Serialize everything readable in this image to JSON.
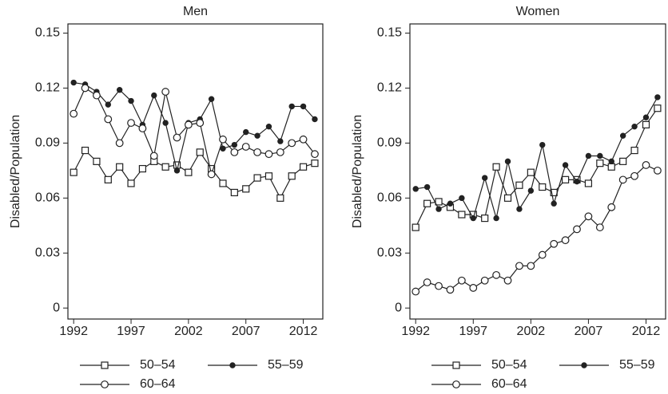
{
  "chart_data": [
    {
      "type": "line",
      "title": "Men",
      "y_label": "Disabled/Population",
      "x": [
        1992,
        1993,
        1994,
        1995,
        1996,
        1997,
        1998,
        1999,
        2000,
        2001,
        2002,
        2003,
        2004,
        2005,
        2006,
        2007,
        2008,
        2009,
        2010,
        2011,
        2012,
        2013
      ],
      "series": [
        {
          "name": "50–54",
          "color": "#222222",
          "marker": "open-square",
          "values": [
            0.074,
            0.086,
            0.08,
            0.07,
            0.077,
            0.068,
            0.076,
            0.08,
            0.077,
            0.078,
            0.074,
            0.085,
            0.076,
            0.068,
            0.063,
            0.065,
            0.071,
            0.072,
            0.06,
            0.072,
            0.077,
            0.079
          ]
        },
        {
          "name": "55–59",
          "color": "#222222",
          "marker": "filled-circle",
          "values": [
            0.123,
            0.122,
            0.118,
            0.111,
            0.119,
            0.113,
            0.1,
            0.116,
            0.101,
            0.075,
            0.101,
            0.103,
            0.114,
            0.087,
            0.089,
            0.096,
            0.094,
            0.099,
            0.091,
            0.11,
            0.11,
            0.103
          ]
        },
        {
          "name": "60–64",
          "color": "#222222",
          "marker": "open-circle",
          "values": [
            0.106,
            0.12,
            0.116,
            0.103,
            0.09,
            0.101,
            0.098,
            0.083,
            0.118,
            0.093,
            0.1,
            0.101,
            0.073,
            0.092,
            0.085,
            0.088,
            0.085,
            0.084,
            0.085,
            0.09,
            0.092,
            0.084
          ]
        }
      ],
      "xlim": [
        1991.5,
        2013.7
      ],
      "ylim": [
        -0.006,
        0.155
      ],
      "xticks": [
        1992,
        1997,
        2002,
        2007,
        2012
      ],
      "yticks": [
        0,
        0.03,
        0.06,
        0.09,
        0.12,
        0.15
      ]
    },
    {
      "type": "line",
      "title": "Women",
      "y_label": "Disabled/Population",
      "x": [
        1992,
        1993,
        1994,
        1995,
        1996,
        1997,
        1998,
        1999,
        2000,
        2001,
        2002,
        2003,
        2004,
        2005,
        2006,
        2007,
        2008,
        2009,
        2010,
        2011,
        2012,
        2013
      ],
      "series": [
        {
          "name": "50–54",
          "color": "#222222",
          "marker": "open-square",
          "values": [
            0.044,
            0.057,
            0.058,
            0.055,
            0.051,
            0.051,
            0.049,
            0.077,
            0.06,
            0.067,
            0.074,
            0.066,
            0.063,
            0.07,
            0.07,
            0.068,
            0.079,
            0.077,
            0.08,
            0.086,
            0.1,
            0.109
          ]
        },
        {
          "name": "55–59",
          "color": "#222222",
          "marker": "filled-circle",
          "values": [
            0.065,
            0.066,
            0.054,
            0.057,
            0.06,
            0.049,
            0.071,
            0.049,
            0.08,
            0.054,
            0.064,
            0.089,
            0.057,
            0.078,
            0.069,
            0.083,
            0.083,
            0.08,
            0.094,
            0.099,
            0.104,
            0.115
          ]
        },
        {
          "name": "60–64",
          "color": "#222222",
          "marker": "open-circle",
          "values": [
            0.009,
            0.014,
            0.012,
            0.01,
            0.015,
            0.011,
            0.015,
            0.018,
            0.015,
            0.023,
            0.023,
            0.029,
            0.035,
            0.037,
            0.043,
            0.05,
            0.044,
            0.055,
            0.07,
            0.072,
            0.078,
            0.075
          ]
        }
      ],
      "xlim": [
        1991.5,
        2013.7
      ],
      "ylim": [
        -0.006,
        0.155
      ],
      "xticks": [
        1992,
        1997,
        2002,
        2007,
        2012
      ],
      "yticks": [
        0,
        0.03,
        0.06,
        0.09,
        0.12,
        0.15
      ]
    }
  ]
}
